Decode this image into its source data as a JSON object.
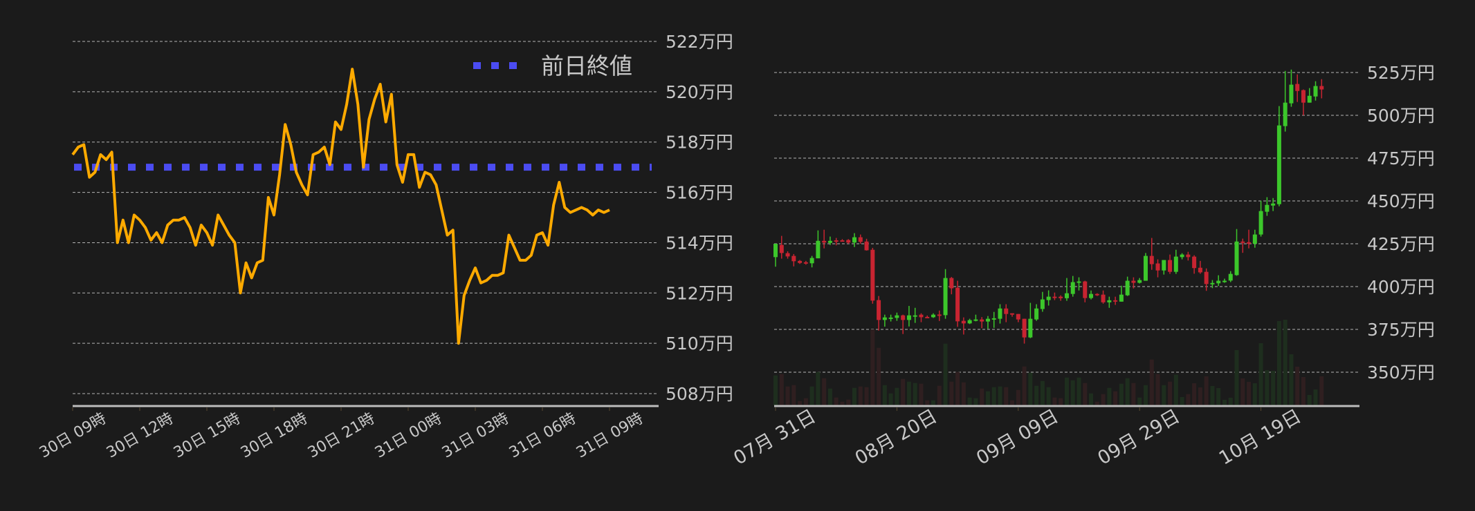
{
  "colors": {
    "background": "#1b1b1b",
    "price_line": "#ffaa00",
    "prev_close": "#4b4cf2",
    "up": "#3cc72b",
    "down": "#c82431",
    "up_volume": "#1e2e1e",
    "down_volume": "#2f1f20",
    "grid": "#d0d0d0",
    "axis": "#bdbdbd",
    "text": "#c8c8c8"
  },
  "chart_data": [
    {
      "type": "line",
      "title": "",
      "xlabel": "",
      "ylabel": "",
      "ylim": [
        508,
        522
      ],
      "yticks": [
        508,
        510,
        512,
        514,
        516,
        518,
        520,
        522
      ],
      "ytick_labels": [
        "508万円",
        "510万円",
        "512万円",
        "514万円",
        "516万円",
        "518万円",
        "520万円",
        "522万円"
      ],
      "xticks": [
        "30日 09:00",
        "30日 12:00",
        "30日 15:00",
        "30日 18:00",
        "30日 21:00",
        "31日 00:00",
        "31日 03:00",
        "31日 06:00",
        "31日 09:00"
      ],
      "xtick_labels": [
        "30日 09時",
        "30日 12時",
        "30日 15時",
        "30日 18時",
        "30日 21時",
        "31日 00時",
        "31日 03時",
        "31日 06時",
        "31日 09時"
      ],
      "grid": true,
      "legend": {
        "placement": "top-right",
        "entries": [
          {
            "label": "前日終値",
            "style": "dotted",
            "color": "#4b4cf2"
          }
        ]
      },
      "prev_close": 517.0,
      "series": [
        {
          "color": "#ffaa00",
          "x": [
            "30日 09:00",
            "30日 09:15",
            "30日 09:30",
            "30日 09:45",
            "30日 10:00",
            "30日 10:15",
            "30日 10:30",
            "30日 10:45",
            "30日 11:00",
            "30日 11:15",
            "30日 11:30",
            "30日 11:45",
            "30日 12:00",
            "30日 12:15",
            "30日 12:30",
            "30日 12:45",
            "30日 13:00",
            "30日 13:15",
            "30日 13:30",
            "30日 13:45",
            "30日 14:00",
            "30日 14:15",
            "30日 14:30",
            "30日 14:45",
            "30日 15:00",
            "30日 15:15",
            "30日 15:30",
            "30日 15:45",
            "30日 16:00",
            "30日 16:15",
            "30日 16:30",
            "30日 16:45",
            "30日 17:00",
            "30日 17:15",
            "30日 17:30",
            "30日 17:45",
            "30日 18:00",
            "30日 18:15",
            "30日 18:30",
            "30日 18:45",
            "30日 19:00",
            "30日 19:15",
            "30日 19:30",
            "30日 19:45",
            "30日 20:00",
            "30日 20:15",
            "30日 20:30",
            "30日 20:45",
            "30日 21:00",
            "30日 21:15",
            "30日 21:30",
            "30日 21:45",
            "30日 22:00",
            "30日 22:15",
            "30日 22:30",
            "30日 22:45",
            "30日 23:00",
            "30日 23:15",
            "30日 23:30",
            "30日 23:45",
            "31日 00:00",
            "31日 00:15",
            "31日 00:30",
            "31日 00:45",
            "31日 01:00",
            "31日 01:15",
            "31日 01:30",
            "31日 01:45",
            "31日 02:00",
            "31日 02:15",
            "31日 02:30",
            "31日 02:45",
            "31日 03:00",
            "31日 03:15",
            "31日 03:30",
            "31日 03:45",
            "31日 04:00",
            "31日 04:15",
            "31日 04:30",
            "31日 04:45",
            "31日 05:00",
            "31日 05:15",
            "31日 05:30",
            "31日 05:45",
            "31日 06:00",
            "31日 06:15",
            "31日 06:30",
            "31日 06:45",
            "31日 07:00",
            "31日 07:15",
            "31日 07:30",
            "31日 07:45",
            "31日 08:00",
            "31日 08:15",
            "31日 08:30",
            "31日 08:45",
            "31日 09:00"
          ],
          "y": [
            517.5,
            517.8,
            517.9,
            516.6,
            516.8,
            517.5,
            517.3,
            517.6,
            514.0,
            514.9,
            514.0,
            515.1,
            514.9,
            514.6,
            514.1,
            514.4,
            514.0,
            514.7,
            514.9,
            514.9,
            515.0,
            514.6,
            513.9,
            514.7,
            514.4,
            513.9,
            515.1,
            514.7,
            514.3,
            514.0,
            512.0,
            513.2,
            512.6,
            513.2,
            513.3,
            515.8,
            515.1,
            516.7,
            518.7,
            517.9,
            516.8,
            516.3,
            515.9,
            517.5,
            517.6,
            517.8,
            517.1,
            518.8,
            518.5,
            519.5,
            520.9,
            519.5,
            517.0,
            518.9,
            519.7,
            520.3,
            518.8,
            519.9,
            517.1,
            516.4,
            517.5,
            517.5,
            516.2,
            516.8,
            516.7,
            516.3,
            515.3,
            514.3,
            514.5,
            510.0,
            511.9,
            512.5,
            513.0,
            512.4,
            512.5,
            512.7,
            512.7,
            512.8,
            514.3,
            513.8,
            513.3,
            513.3,
            513.5,
            514.3,
            514.4,
            513.9,
            515.5,
            516.4,
            515.4,
            515.2,
            515.3,
            515.4,
            515.3,
            515.1,
            515.3,
            515.2,
            515.3
          ]
        }
      ]
    },
    {
      "type": "candlestick",
      "title": "",
      "xlabel": "",
      "ylabel": "",
      "ylim": [
        335,
        532
      ],
      "yticks": [
        350,
        375,
        400,
        425,
        450,
        475,
        500,
        525
      ],
      "ytick_labels": [
        "350万円",
        "375万円",
        "400万円",
        "425万円",
        "450万円",
        "475万円",
        "500万円",
        "525万円"
      ],
      "xticks": [
        "07/31",
        "08/20",
        "09/09",
        "09/29",
        "10/19"
      ],
      "xtick_labels": [
        "07月 31日",
        "08月 20日",
        "09月 09日",
        "09月 29日",
        "10月 19日"
      ],
      "grid": true,
      "dates": [
        "07/31",
        "08/01",
        "08/02",
        "08/03",
        "08/04",
        "08/05",
        "08/06",
        "08/07",
        "08/08",
        "08/09",
        "08/10",
        "08/11",
        "08/12",
        "08/13",
        "08/14",
        "08/15",
        "08/16",
        "08/17",
        "08/18",
        "08/19",
        "08/20",
        "08/21",
        "08/22",
        "08/23",
        "08/24",
        "08/25",
        "08/26",
        "08/27",
        "08/28",
        "08/29",
        "08/30",
        "08/31",
        "09/01",
        "09/02",
        "09/03",
        "09/04",
        "09/05",
        "09/06",
        "09/07",
        "09/08",
        "09/09",
        "09/10",
        "09/11",
        "09/12",
        "09/13",
        "09/14",
        "09/15",
        "09/16",
        "09/17",
        "09/18",
        "09/19",
        "09/20",
        "09/21",
        "09/22",
        "09/23",
        "09/24",
        "09/25",
        "09/26",
        "09/27",
        "09/28",
        "09/29",
        "09/30",
        "10/01",
        "10/02",
        "10/03",
        "10/04",
        "10/05",
        "10/06",
        "10/07",
        "10/08",
        "10/09",
        "10/10",
        "10/11",
        "10/12",
        "10/13",
        "10/14",
        "10/15",
        "10/16",
        "10/17",
        "10/18",
        "10/19",
        "10/20",
        "10/21",
        "10/22",
        "10/23",
        "10/24",
        "10/25",
        "10/26",
        "10/27",
        "10/28",
        "10/29"
      ],
      "ohlc_order": [
        "open",
        "high",
        "low",
        "close"
      ],
      "ohlc": [
        [
          417.2,
          425,
          411.6,
          425
        ],
        [
          424.3,
          429.6,
          416.3,
          419.6
        ],
        [
          419.5,
          420.6,
          416.3,
          417.6
        ],
        [
          417.9,
          419,
          411.8,
          414.8
        ],
        [
          415,
          415.5,
          413.2,
          413.8
        ],
        [
          414.2,
          415,
          412.8,
          413.6
        ],
        [
          413.6,
          417.9,
          411.2,
          416.7
        ],
        [
          416.5,
          432.8,
          416.5,
          426.7
        ],
        [
          426.7,
          433.2,
          422.3,
          425.7
        ],
        [
          425.5,
          429.2,
          424.3,
          426.7
        ],
        [
          427.0,
          428.4,
          424.1,
          426.7
        ],
        [
          427.0,
          427.7,
          426.3,
          426.6
        ],
        [
          427.2,
          427.7,
          425,
          425.7
        ],
        [
          425.7,
          431.2,
          423.1,
          428.8
        ],
        [
          428.8,
          430.4,
          425,
          426.1
        ],
        [
          426.3,
          427.9,
          421,
          421.2
        ],
        [
          421.5,
          422.6,
          390,
          391.8
        ],
        [
          392.1,
          394.5,
          374.3,
          380.5
        ],
        [
          380.5,
          383.6,
          376.6,
          382
        ],
        [
          381.7,
          383.6,
          379.6,
          381.9
        ],
        [
          381.7,
          384.8,
          380,
          383.2
        ],
        [
          383.2,
          383.6,
          372.3,
          380.5
        ],
        [
          380.5,
          388.7,
          376.7,
          383.2
        ],
        [
          382.4,
          387.6,
          378.8,
          383.2
        ],
        [
          383.6,
          384.4,
          379.2,
          382.1
        ],
        [
          382.3,
          383.1,
          381.9,
          382.2
        ],
        [
          382.1,
          384.4,
          381.7,
          383.6
        ],
        [
          383.7,
          386,
          379.9,
          383.6
        ],
        [
          383.3,
          410.2,
          381.2,
          405
        ],
        [
          405,
          405.6,
          395.5,
          399
        ],
        [
          399.3,
          403.4,
          376.5,
          379.7
        ],
        [
          380,
          382,
          372,
          378.5
        ],
        [
          378.5,
          381.2,
          378.1,
          380.4
        ],
        [
          380.3,
          383.6,
          379.7,
          380.8
        ],
        [
          380.8,
          382.2,
          375.7,
          379.6
        ],
        [
          379.6,
          382.8,
          375.3,
          381.2
        ],
        [
          381.3,
          385.2,
          375.9,
          381.5
        ],
        [
          381.2,
          389.7,
          378.4,
          387.2
        ],
        [
          387.2,
          389.7,
          379.2,
          384
        ],
        [
          384.4,
          384.4,
          382.4,
          383.6
        ],
        [
          384,
          384,
          379.2,
          380.8
        ],
        [
          381.2,
          381.2,
          366.7,
          370.3
        ],
        [
          370.3,
          390.5,
          369.9,
          381.2
        ],
        [
          380.8,
          389.7,
          380,
          387.2
        ],
        [
          386.9,
          396.9,
          385.3,
          392.5
        ],
        [
          392.1,
          397.8,
          388.9,
          394.1
        ],
        [
          394.1,
          396.5,
          392.1,
          393.8
        ],
        [
          394.1,
          394.9,
          391.7,
          393.2
        ],
        [
          393.2,
          405,
          391.7,
          396.1
        ],
        [
          395.7,
          406.2,
          394.1,
          402.6
        ],
        [
          402.2,
          405.4,
          397.7,
          403
        ],
        [
          403,
          403.4,
          390.8,
          393.3
        ],
        [
          393.3,
          397.7,
          392.5,
          395.7
        ],
        [
          395.7,
          396.1,
          394.5,
          394.9
        ],
        [
          395.3,
          397.7,
          390,
          390.8
        ],
        [
          390.8,
          394.1,
          387.6,
          392
        ],
        [
          392,
          394.1,
          389.3,
          391.2
        ],
        [
          391.2,
          400.5,
          391.2,
          395.3
        ],
        [
          394.9,
          405.8,
          394.5,
          403.4
        ],
        [
          403.4,
          405.4,
          398.9,
          402.2
        ],
        [
          402.2,
          405,
          401.8,
          403.8
        ],
        [
          403.4,
          419.6,
          403.4,
          417.9
        ],
        [
          417.9,
          428.4,
          409.8,
          413.1
        ],
        [
          413.5,
          415.9,
          405.4,
          409.4
        ],
        [
          409.4,
          415.5,
          407,
          415.5
        ],
        [
          415.5,
          418.7,
          407.4,
          408.6
        ],
        [
          408.6,
          421.5,
          407.4,
          417.5
        ],
        [
          417.2,
          419.5,
          415.9,
          418.7
        ],
        [
          418.7,
          420.3,
          415.2,
          417.2
        ],
        [
          417.5,
          418.3,
          407.5,
          410.8
        ],
        [
          411,
          415,
          407.5,
          408.3
        ],
        [
          408.6,
          410.6,
          397.5,
          401.5
        ],
        [
          401.5,
          403.8,
          399.1,
          402.1
        ],
        [
          401.9,
          406.6,
          400.3,
          403.4
        ],
        [
          403.2,
          404.6,
          402.2,
          403.4
        ],
        [
          403.5,
          409,
          402.6,
          407.4
        ],
        [
          406.7,
          433.6,
          406.3,
          426.3
        ],
        [
          426.3,
          428,
          419.7,
          425.5
        ],
        [
          425.9,
          433.2,
          422.3,
          425
        ],
        [
          425,
          433.2,
          422.7,
          430.4
        ],
        [
          430.4,
          450.1,
          429.2,
          444.1
        ],
        [
          443.7,
          452.2,
          441.3,
          447.7
        ],
        [
          447.3,
          451.7,
          444.1,
          448.5
        ],
        [
          448.1,
          505.4,
          446.9,
          494.1
        ],
        [
          493.7,
          525.9,
          490.5,
          507.4
        ],
        [
          507,
          526.7,
          505,
          517.9
        ],
        [
          518.3,
          523.9,
          507.8,
          514.2
        ],
        [
          514.7,
          515.1,
          500,
          507.4
        ],
        [
          507.4,
          515.9,
          507.4,
          511.4
        ],
        [
          511,
          519.9,
          508.6,
          517.1
        ],
        [
          517.1,
          521.1,
          509.9,
          515.1
        ]
      ],
      "volume_relative": [
        130,
        136,
        82,
        88,
        19,
        31,
        82,
        145,
        118,
        73,
        34,
        16,
        25,
        76,
        82,
        79,
        330,
        250,
        88,
        52,
        76,
        115,
        103,
        97,
        94,
        22,
        22,
        85,
        268,
        103,
        145,
        100,
        34,
        31,
        73,
        61,
        79,
        82,
        79,
        22,
        67,
        169,
        142,
        85,
        106,
        79,
        34,
        31,
        121,
        109,
        121,
        97,
        52,
        16,
        49,
        76,
        61,
        94,
        118,
        97,
        34,
        88,
        199,
        136,
        88,
        103,
        133,
        36,
        49,
        96,
        78,
        126,
        84,
        75,
        24,
        33,
        240,
        117,
        102,
        96,
        270,
        153,
        150,
        366,
        372,
        222,
        168,
        123,
        45,
        69,
        126
      ]
    }
  ]
}
